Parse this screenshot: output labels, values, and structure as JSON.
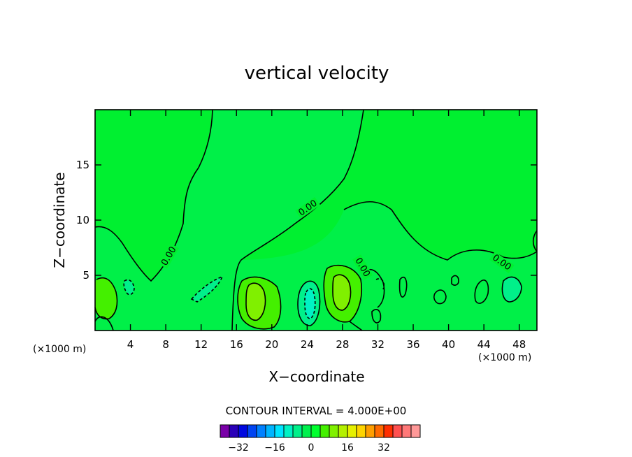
{
  "chart_data": {
    "type": "heatmap",
    "title": "vertical velocity",
    "xlabel": "X−coordinate",
    "ylabel": "Z−coordinate",
    "x_unit": "(×1000 m)",
    "y_unit": "(×1000 m)",
    "xlim": [
      0,
      50
    ],
    "ylim": [
      0,
      20
    ],
    "x_ticks": [
      4,
      8,
      12,
      16,
      20,
      24,
      28,
      32,
      36,
      40,
      44,
      48
    ],
    "x_tick_labels": [
      "4",
      "8",
      "12",
      "16",
      "20",
      "24",
      "28",
      "32",
      "36",
      "40",
      "44",
      "48"
    ],
    "y_ticks": [
      5,
      10,
      15
    ],
    "y_tick_labels": [
      "5",
      "10",
      "15"
    ],
    "contour_interval_text": "CONTOUR INTERVAL = 4.000E+00",
    "contour_labels": [
      "0.00",
      "0.00",
      "0.00",
      "0.00"
    ],
    "colorbar": {
      "colors": [
        "#7a00a8",
        "#2a00b8",
        "#0008e0",
        "#0044f2",
        "#0080ff",
        "#00b4ff",
        "#00e4ff",
        "#00f2c4",
        "#00f08a",
        "#00f04e",
        "#00ff2e",
        "#44f000",
        "#80f000",
        "#b4f000",
        "#e6f000",
        "#ffd400",
        "#ff9e00",
        "#ff6a00",
        "#ff2e00",
        "#ff5050",
        "#ff7878",
        "#ff9898"
      ],
      "tick_labels": [
        "−32",
        "−16",
        "0",
        "16",
        "32"
      ],
      "tick_values": [
        -32,
        -16,
        0,
        16,
        32
      ]
    },
    "regions": [
      {
        "level": 0,
        "cx": 24.8,
        "cz": 10,
        "note": "background near-zero field"
      },
      {
        "level": 4,
        "cx": 18.1,
        "cz": 2.9
      },
      {
        "level": 4,
        "cx": 27.9,
        "cz": 3.7
      },
      {
        "level": 4,
        "cx": 0.9,
        "cz": 3.1
      },
      {
        "level": -4,
        "cx": 24.1,
        "cz": 2.8
      },
      {
        "level": -4,
        "cx": 11.9,
        "cz": 3.8
      },
      {
        "level": -4,
        "cx": 47.1,
        "cz": 4.1
      }
    ]
  }
}
